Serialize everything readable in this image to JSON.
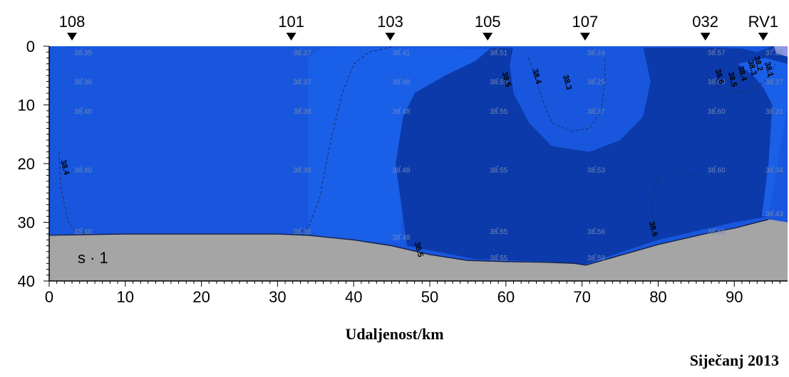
{
  "chart_data": {
    "type": "heatmap",
    "title": "",
    "xlabel": "Udaljenost/km",
    "ylabel": "",
    "xlim": [
      0,
      97
    ],
    "ylim": [
      40,
      0
    ],
    "x_ticks": [
      0,
      10,
      20,
      30,
      40,
      50,
      60,
      70,
      80,
      90
    ],
    "y_ticks": [
      0,
      10,
      20,
      30,
      40
    ],
    "parameter_label": "s · 1",
    "date_label": "Siječanj 2013",
    "stations": [
      {
        "name": "108",
        "x": 3
      },
      {
        "name": "101",
        "x": 31.8
      },
      {
        "name": "103",
        "x": 44.8
      },
      {
        "name": "105",
        "x": 57.6
      },
      {
        "name": "107",
        "x": 70.4
      },
      {
        "name": "032",
        "x": 86.2
      },
      {
        "name": "RV1",
        "x": 93.8
      }
    ],
    "measurements": [
      {
        "x": 3,
        "depth": 1,
        "value": "38.35"
      },
      {
        "x": 3,
        "depth": 6,
        "value": "38.36"
      },
      {
        "x": 3,
        "depth": 11,
        "value": "38.40"
      },
      {
        "x": 3,
        "depth": 21,
        "value": "38.40"
      },
      {
        "x": 3,
        "depth": 31.5,
        "value": "38.40"
      },
      {
        "x": 31.8,
        "depth": 1,
        "value": "38.37"
      },
      {
        "x": 31.8,
        "depth": 6,
        "value": "38.37"
      },
      {
        "x": 31.8,
        "depth": 11,
        "value": "38.38"
      },
      {
        "x": 31.8,
        "depth": 21,
        "value": "38.38"
      },
      {
        "x": 31.8,
        "depth": 31.5,
        "value": "38.38"
      },
      {
        "x": 44.8,
        "depth": 1,
        "value": "38.41"
      },
      {
        "x": 44.8,
        "depth": 6,
        "value": "38.48"
      },
      {
        "x": 44.8,
        "depth": 11,
        "value": "38.48"
      },
      {
        "x": 44.8,
        "depth": 21,
        "value": "38.48"
      },
      {
        "x": 44.8,
        "depth": 32.5,
        "value": "38.48"
      },
      {
        "x": 57.6,
        "depth": 1,
        "value": "38.51"
      },
      {
        "x": 57.6,
        "depth": 6,
        "value": "38.55"
      },
      {
        "x": 57.6,
        "depth": 11,
        "value": "38.55"
      },
      {
        "x": 57.6,
        "depth": 21,
        "value": "38.55"
      },
      {
        "x": 57.6,
        "depth": 31.5,
        "value": "38.55"
      },
      {
        "x": 57.6,
        "depth": 36,
        "value": "38.55"
      },
      {
        "x": 70.4,
        "depth": 1,
        "value": "38.24"
      },
      {
        "x": 70.4,
        "depth": 6,
        "value": "38.25"
      },
      {
        "x": 70.4,
        "depth": 11,
        "value": "38.27"
      },
      {
        "x": 70.4,
        "depth": 21,
        "value": "38.53"
      },
      {
        "x": 70.4,
        "depth": 31.5,
        "value": "38.56"
      },
      {
        "x": 70.4,
        "depth": 36,
        "value": "38.59"
      },
      {
        "x": 86.2,
        "depth": 1,
        "value": "38.57"
      },
      {
        "x": 86.2,
        "depth": 6,
        "value": "38.60"
      },
      {
        "x": 86.2,
        "depth": 11,
        "value": "38.60"
      },
      {
        "x": 86.2,
        "depth": 21,
        "value": "38.60"
      },
      {
        "x": 86.2,
        "depth": 31.5,
        "value": "38.60"
      },
      {
        "x": 93.8,
        "depth": 1,
        "value": "37.88"
      },
      {
        "x": 93.8,
        "depth": 6,
        "value": "38.27"
      },
      {
        "x": 93.8,
        "depth": 11,
        "value": "38.31"
      },
      {
        "x": 93.8,
        "depth": 21,
        "value": "38.34"
      },
      {
        "x": 93.8,
        "depth": 28.5,
        "value": "38.43"
      }
    ],
    "contour_labels": [
      {
        "text": "38.4",
        "x": 1.5,
        "depth": 19.5
      },
      {
        "text": "38.5",
        "x": 59.5,
        "depth": 4.5
      },
      {
        "text": "38.4",
        "x": 63.5,
        "depth": 4
      },
      {
        "text": "38.3",
        "x": 67.5,
        "depth": 5
      },
      {
        "text": "38.6",
        "x": 78.8,
        "depth": 30
      },
      {
        "text": "38.5",
        "x": 48,
        "depth": 33.5
      },
      {
        "text": "38.6",
        "x": 87.5,
        "depth": 4
      },
      {
        "text": "38.5",
        "x": 89.2,
        "depth": 4.5
      },
      {
        "text": "38.4",
        "x": 90.5,
        "depth": 3.5
      },
      {
        "text": "38.3",
        "x": 91.8,
        "depth": 2.5
      },
      {
        "text": "38.2",
        "x": 92.6,
        "depth": 1.8
      },
      {
        "text": "38.1",
        "x": 94,
        "depth": 2.8
      }
    ],
    "zones": [
      {
        "range": "< 38.3",
        "color": "#1857dd"
      },
      {
        "range": "38.3 – 38.4",
        "color": "#1a5fe8"
      },
      {
        "range": "38.4 – 38.5",
        "color": "#1448c8"
      },
      {
        "range": "> 38.5",
        "color": "#0c3aaa"
      },
      {
        "range": "near-surface max",
        "color": "#8e96e6"
      },
      {
        "range": "seabed",
        "color": "#a5a5a5"
      }
    ]
  }
}
